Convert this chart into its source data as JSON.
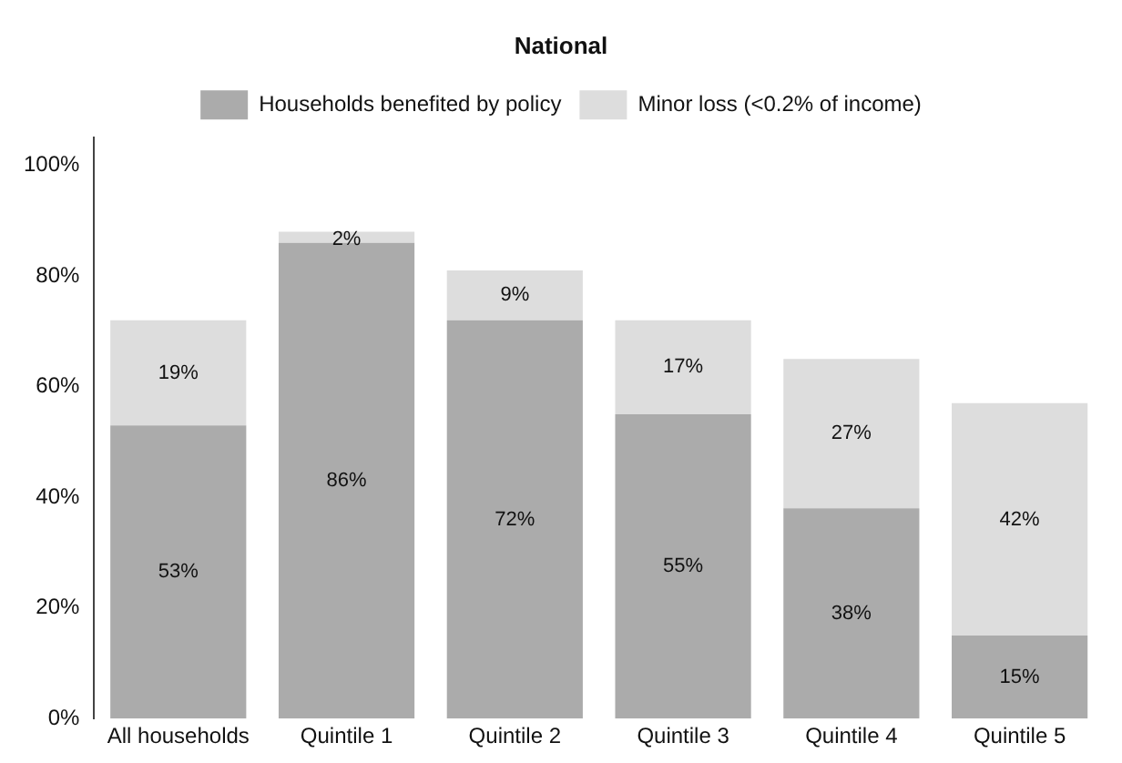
{
  "chart_data": {
    "type": "bar",
    "title": "National",
    "stacked": true,
    "categories": [
      "All households",
      "Quintile 1",
      "Quintile 2",
      "Quintile 3",
      "Quintile 4",
      "Quintile 5"
    ],
    "series": [
      {
        "name": "Households benefited by policy",
        "color": "#ababab",
        "values": [
          53,
          86,
          72,
          55,
          38,
          15
        ],
        "value_labels": [
          "53%",
          "86%",
          "72%",
          "55%",
          "38%",
          "15%"
        ]
      },
      {
        "name": "Minor loss (<0.2% of income)",
        "color": "#dddddd",
        "values": [
          19,
          2,
          9,
          17,
          27,
          42
        ],
        "value_labels": [
          "19%",
          "2%",
          "9%",
          "17%",
          "27%",
          "42%"
        ]
      }
    ],
    "ylim": [
      0,
      105
    ],
    "yticks": [
      {
        "value": 0,
        "label": "0%"
      },
      {
        "value": 20,
        "label": "20%"
      },
      {
        "value": 40,
        "label": "40%"
      },
      {
        "value": 60,
        "label": "60%"
      },
      {
        "value": 80,
        "label": "80%"
      },
      {
        "value": 100,
        "label": "100%"
      }
    ],
    "grid": false,
    "legend": "top"
  }
}
